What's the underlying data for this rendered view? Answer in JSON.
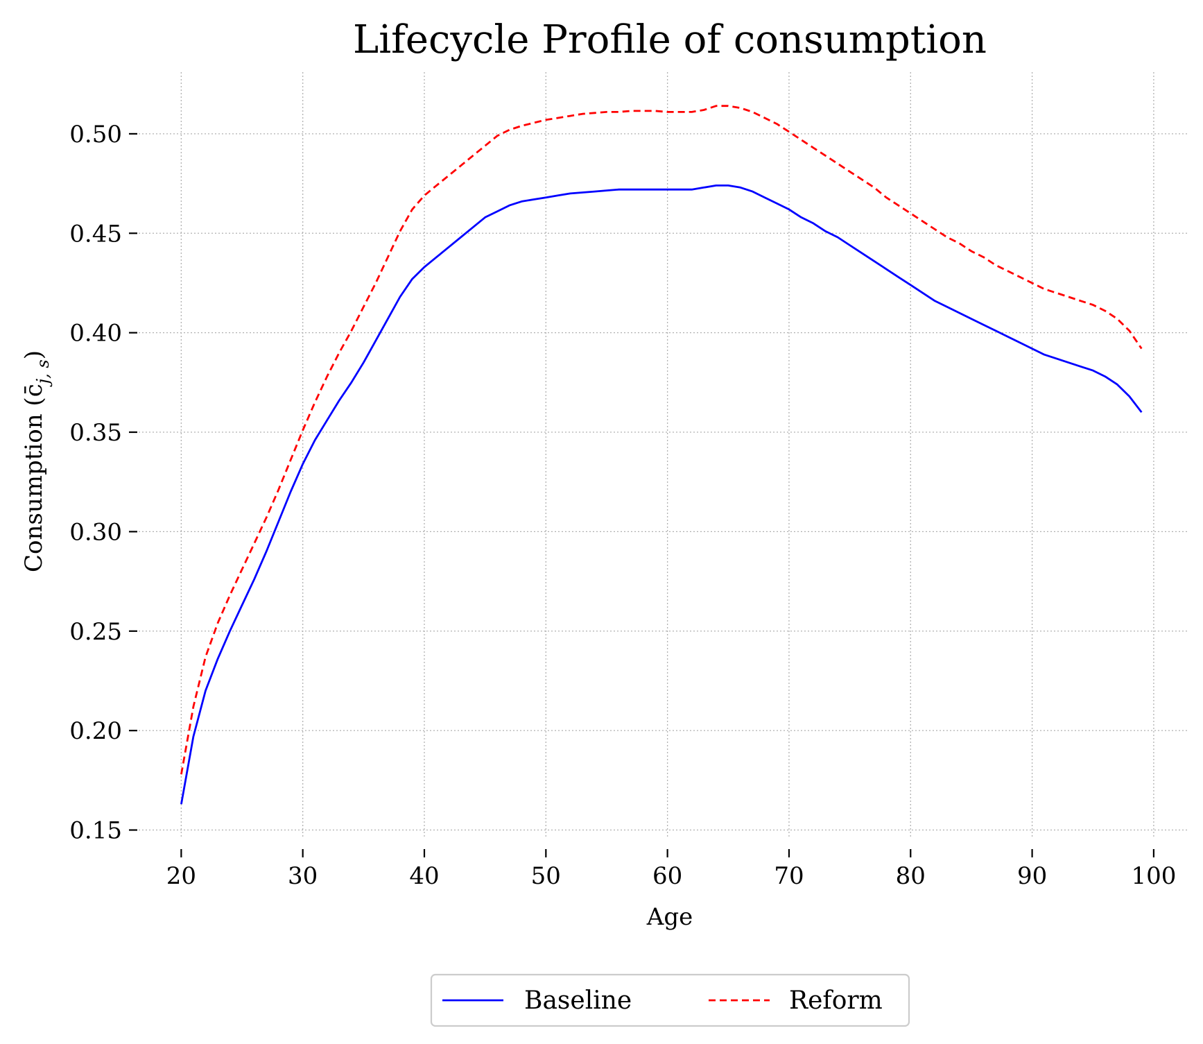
{
  "chart_data": {
    "type": "line",
    "title": "Lifecycle Profile of consumption",
    "xlabel": "Age",
    "ylabel": "Consumption (c̄",
    "ylabel_sub": "j, s",
    "ylabel_close": ")",
    "xlim": [
      16.5,
      102.8
    ],
    "ylim": [
      0.146,
      0.531
    ],
    "x_ticks": [
      20,
      30,
      40,
      50,
      60,
      70,
      80,
      90,
      100
    ],
    "x_tick_labels": [
      "20",
      "30",
      "40",
      "50",
      "60",
      "70",
      "80",
      "90",
      "100"
    ],
    "y_ticks": [
      0.15,
      0.2,
      0.25,
      0.3,
      0.35,
      0.4,
      0.45,
      0.5
    ],
    "y_tick_labels": [
      "0.15",
      "0.20",
      "0.25",
      "0.30",
      "0.35",
      "0.40",
      "0.45",
      "0.50"
    ],
    "grid": true,
    "legend_position": "bottom-center",
    "x": [
      20,
      21,
      22,
      23,
      24,
      25,
      26,
      27,
      28,
      29,
      30,
      31,
      32,
      33,
      34,
      35,
      36,
      37,
      38,
      39,
      40,
      41,
      42,
      43,
      44,
      45,
      46,
      47,
      48,
      49,
      50,
      51,
      52,
      53,
      54,
      55,
      56,
      57,
      58,
      59,
      60,
      61,
      62,
      63,
      64,
      65,
      66,
      67,
      68,
      69,
      70,
      71,
      72,
      73,
      74,
      75,
      76,
      77,
      78,
      79,
      80,
      81,
      82,
      83,
      84,
      85,
      86,
      87,
      88,
      89,
      90,
      91,
      92,
      93,
      94,
      95,
      96,
      97,
      98,
      99
    ],
    "series": [
      {
        "name": "Baseline",
        "color": "#0000ff",
        "line_style": "solid",
        "values": [
          0.163,
          0.197,
          0.22,
          0.236,
          0.25,
          0.263,
          0.276,
          0.29,
          0.305,
          0.32,
          0.334,
          0.346,
          0.356,
          0.366,
          0.375,
          0.385,
          0.396,
          0.407,
          0.418,
          0.427,
          0.433,
          0.438,
          0.443,
          0.448,
          0.453,
          0.458,
          0.461,
          0.464,
          0.466,
          0.467,
          0.468,
          0.469,
          0.47,
          0.4705,
          0.471,
          0.4715,
          0.472,
          0.472,
          0.472,
          0.472,
          0.472,
          0.472,
          0.472,
          0.473,
          0.474,
          0.474,
          0.473,
          0.471,
          0.468,
          0.465,
          0.462,
          0.458,
          0.455,
          0.451,
          0.448,
          0.444,
          0.44,
          0.436,
          0.432,
          0.428,
          0.424,
          0.42,
          0.416,
          0.413,
          0.41,
          0.407,
          0.404,
          0.401,
          0.398,
          0.395,
          0.392,
          0.389,
          0.387,
          0.385,
          0.383,
          0.381,
          0.378,
          0.374,
          0.368,
          0.36
        ]
      },
      {
        "name": "Reform",
        "color": "#ff0000",
        "line_style": "dashed",
        "values": [
          0.178,
          0.212,
          0.237,
          0.254,
          0.268,
          0.281,
          0.294,
          0.307,
          0.321,
          0.336,
          0.351,
          0.365,
          0.378,
          0.39,
          0.401,
          0.413,
          0.425,
          0.438,
          0.451,
          0.462,
          0.469,
          0.474,
          0.479,
          0.484,
          0.489,
          0.494,
          0.499,
          0.502,
          0.504,
          0.5055,
          0.507,
          0.508,
          0.509,
          0.51,
          0.5105,
          0.511,
          0.511,
          0.5115,
          0.5115,
          0.5115,
          0.511,
          0.511,
          0.511,
          0.512,
          0.514,
          0.514,
          0.513,
          0.511,
          0.508,
          0.505,
          0.501,
          0.497,
          0.493,
          0.489,
          0.485,
          0.481,
          0.477,
          0.473,
          0.468,
          0.464,
          0.46,
          0.456,
          0.452,
          0.448,
          0.445,
          0.441,
          0.438,
          0.434,
          0.431,
          0.428,
          0.425,
          0.422,
          0.42,
          0.418,
          0.416,
          0.414,
          0.411,
          0.407,
          0.401,
          0.392
        ]
      }
    ]
  }
}
